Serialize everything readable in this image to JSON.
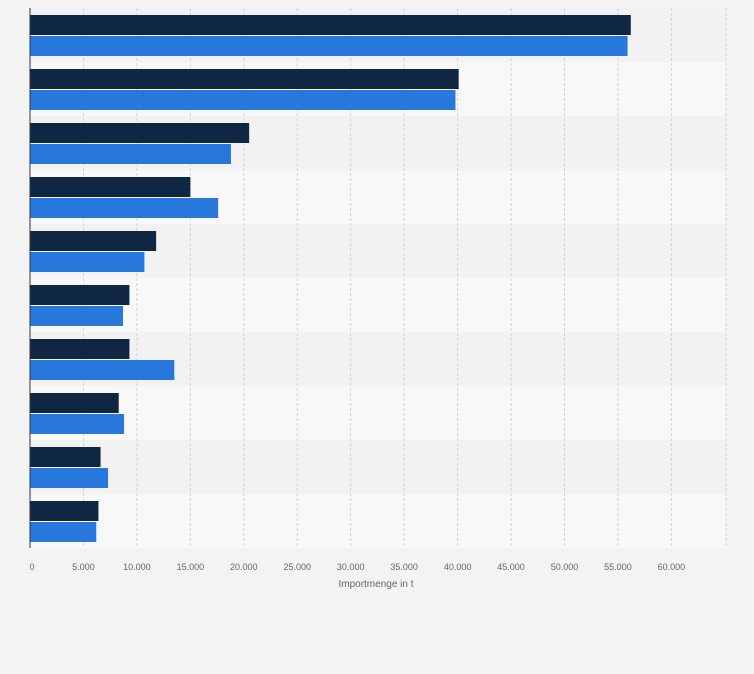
{
  "chart_data": {
    "type": "bar",
    "orientation": "horizontal",
    "categories": [
      "",
      "",
      "",
      "",
      "",
      "",
      "",
      "",
      "",
      ""
    ],
    "series": [
      {
        "values": [
          56200,
          40100,
          20500,
          15000,
          11800,
          9300,
          9300,
          8300,
          6600,
          6400
        ]
      },
      {
        "values": [
          55900,
          39800,
          18800,
          17600,
          10700,
          8700,
          13500,
          8800,
          7300,
          6200
        ]
      }
    ],
    "xlabel": "Importmenge in t",
    "ylabel": "",
    "xlim": [
      0,
      65000
    ],
    "x_ticks": [
      "0",
      "5.000",
      "10.000",
      "15.000",
      "20.000",
      "25.000",
      "30.000",
      "35.000",
      "40.000",
      "45.000",
      "50.000",
      "55.000",
      "60.000"
    ],
    "grid": true,
    "legend": "none"
  },
  "colors": {
    "series": [
      "#0f2742",
      "#2878dc"
    ],
    "band_alt": "#f2f2f2",
    "band": "#f8f8f8",
    "background": "#f3f3f3",
    "plot_background": "#ffffff",
    "gridline": "#d4d4d4",
    "axis": "#333333",
    "tick_text": "#666666"
  }
}
